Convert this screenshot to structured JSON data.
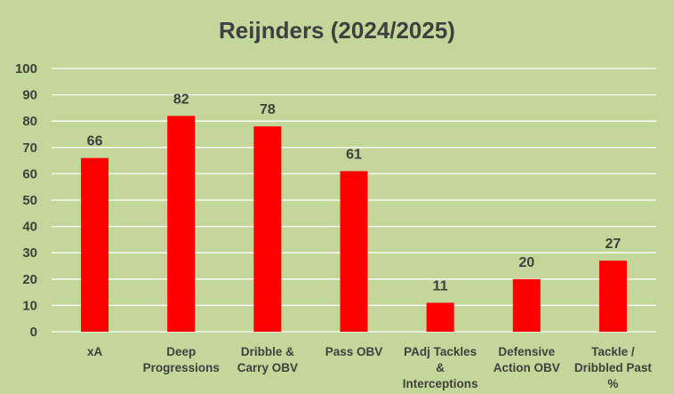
{
  "chart_data": {
    "type": "bar",
    "title": "Reijnders (2024/2025)",
    "xlabel": "",
    "ylabel": "",
    "categories": [
      [
        "xA"
      ],
      [
        "Deep",
        "Progressions"
      ],
      [
        "Dribble &",
        "Carry OBV"
      ],
      [
        "Pass OBV"
      ],
      [
        "PAdj Tackles",
        "&",
        "Interceptions"
      ],
      [
        "Defensive",
        "Action OBV"
      ],
      [
        "Tackle /",
        "Dribbled Past",
        "%"
      ]
    ],
    "values": [
      66,
      82,
      78,
      61,
      11,
      20,
      27
    ],
    "ylim": [
      0,
      100
    ],
    "yticks": [
      0,
      10,
      20,
      30,
      40,
      50,
      60,
      70,
      80,
      90,
      100
    ],
    "grid": true,
    "legend": "none",
    "colors": {
      "bar": "#ff0000",
      "background": "#c4d79b",
      "grid": "#ffffff",
      "text": "#3f3f3f"
    }
  }
}
